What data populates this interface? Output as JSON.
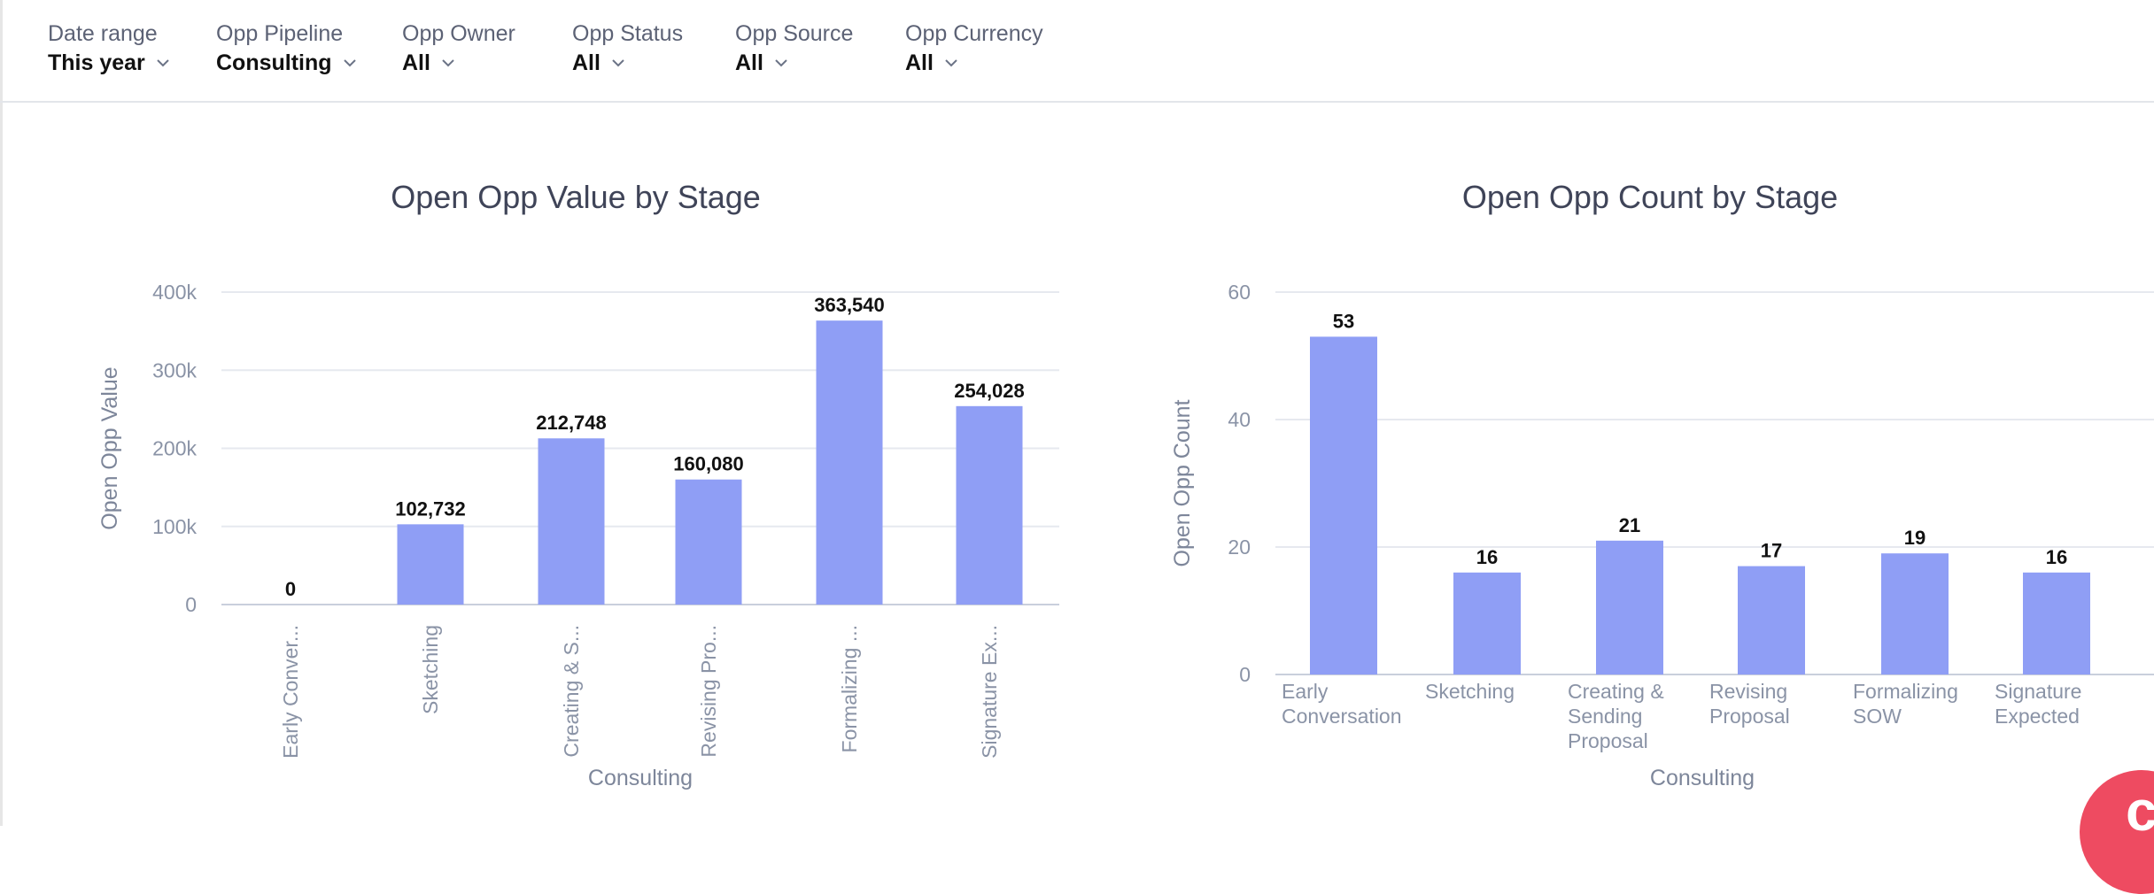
{
  "filters": [
    {
      "label": "Date range",
      "value": "This year"
    },
    {
      "label": "Opp Pipeline",
      "value": "Consulting"
    },
    {
      "label": "Opp Owner",
      "value": "All"
    },
    {
      "label": "Opp Status",
      "value": "All"
    },
    {
      "label": "Opp Source",
      "value": "All"
    },
    {
      "label": "Opp Currency",
      "value": "All"
    }
  ],
  "chart_data": [
    {
      "type": "bar",
      "title": "Open Opp Value by Stage",
      "ylabel": "Open Opp Value",
      "xlabel": "Consulting",
      "categories": [
        "Early Conver...",
        "Sketching",
        "Creating & S...",
        "Revising Pro...",
        "Formalizing ...",
        "Signature Ex..."
      ],
      "values": [
        0,
        102732,
        212748,
        160080,
        363540,
        254028
      ],
      "value_labels": [
        "0",
        "102,732",
        "212,748",
        "160,080",
        "363,540",
        "254,028"
      ],
      "yticks": [
        "0",
        "100k",
        "200k",
        "300k",
        "400k"
      ],
      "ylim": [
        0,
        400000
      ],
      "grid": true,
      "color": "#8f9ef5"
    },
    {
      "type": "bar",
      "title": "Open Opp Count by Stage",
      "ylabel": "Open Opp Count",
      "xlabel": "Consulting",
      "categories": [
        "Early Conversation",
        "Sketching",
        "Creating & Sending Proposal",
        "Revising Proposal",
        "Formalizing SOW",
        "Signature Expected"
      ],
      "values": [
        53,
        16,
        21,
        17,
        19,
        16
      ],
      "value_labels": [
        "53",
        "16",
        "21",
        "17",
        "19",
        "16"
      ],
      "yticks": [
        "0",
        "20",
        "40",
        "60"
      ],
      "ylim": [
        0,
        60
      ],
      "grid": true,
      "color": "#8f9ef5"
    }
  ],
  "colors": {
    "bar": "#8f9ef5",
    "accent": "#ee4b61"
  },
  "fab": {
    "icon": "chat-launcher-icon"
  }
}
